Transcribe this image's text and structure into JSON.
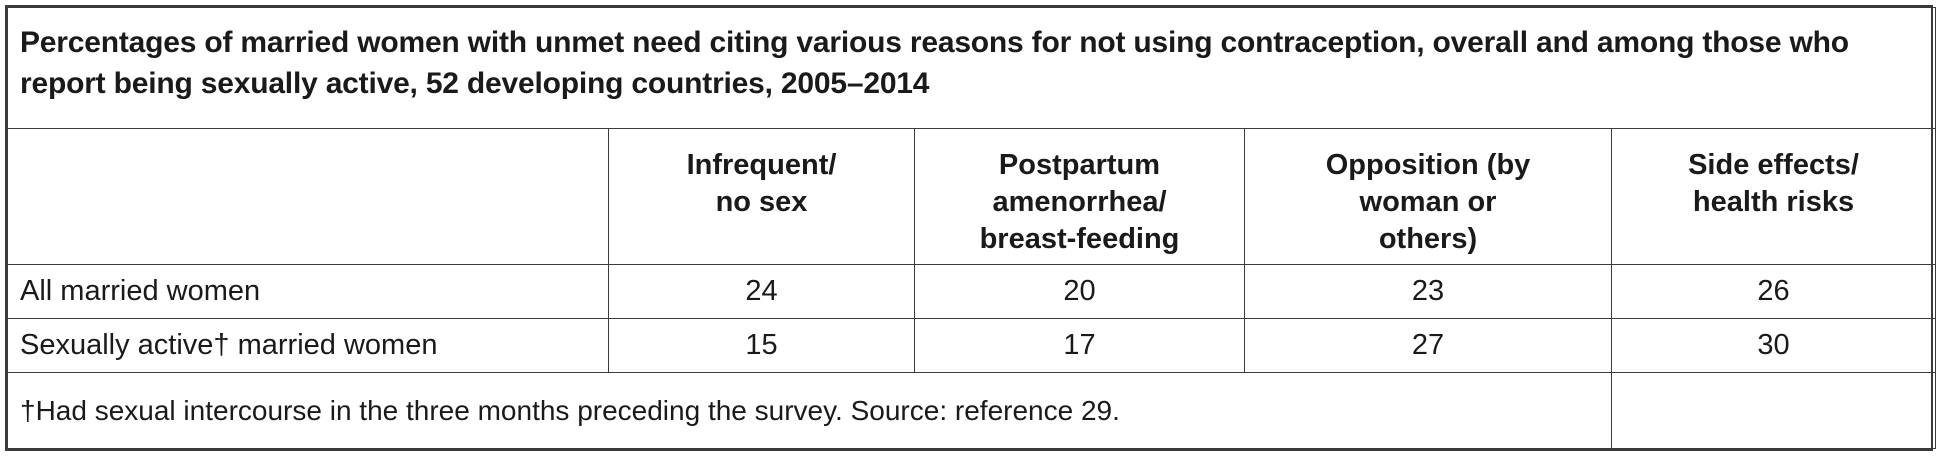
{
  "title": "Percentages of married women with unmet need citing various reasons for not using contraception, overall and among those who report being sexually active, 52 developing countries, 2005–2014",
  "columns": [
    {
      "lines": [
        "Infrequent/",
        "no sex"
      ]
    },
    {
      "lines": [
        "Postpartum",
        "amenorrhea/",
        "breast-feeding"
      ]
    },
    {
      "lines": [
        "Opposition (by",
        "woman or",
        "others)"
      ]
    },
    {
      "lines": [
        "Side effects/",
        "health risks"
      ]
    }
  ],
  "rows": [
    {
      "label": "All married women",
      "values": [
        "24",
        "20",
        "23",
        "26"
      ]
    },
    {
      "label": "Sexually active† married women",
      "values": [
        "15",
        "17",
        "27",
        "30"
      ]
    }
  ],
  "footnote": {
    "note": "†Had sexual intercourse in the three months preceding the survey.",
    "source_label": "Source:",
    "source_text": "reference 29."
  }
}
